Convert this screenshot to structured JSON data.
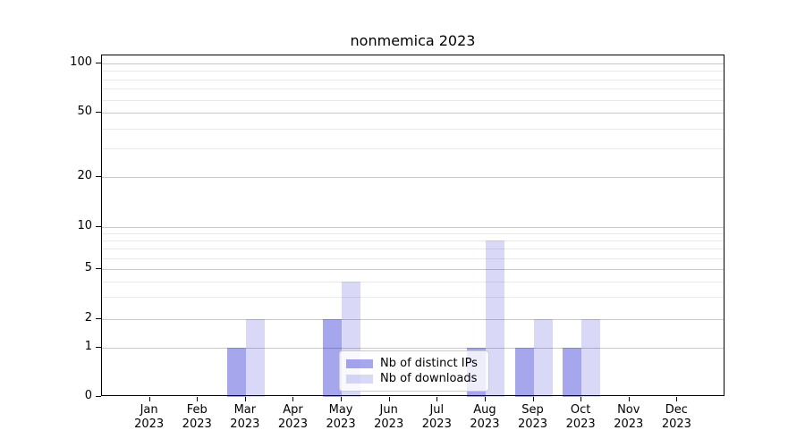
{
  "title": "nonmemica 2023",
  "chart_data": {
    "type": "bar",
    "title": "nonmemica 2023",
    "categories": [
      "Jan",
      "Feb",
      "Mar",
      "Apr",
      "May",
      "Jun",
      "Jul",
      "Aug",
      "Sep",
      "Oct",
      "Nov",
      "Dec"
    ],
    "x_year": "2023",
    "series": [
      {
        "name": "Nb of distinct IPs",
        "color": "rgba(0,0,204,0.35)",
        "values": [
          0,
          0,
          1,
          0,
          2,
          0,
          0,
          1,
          1,
          1,
          0,
          0
        ]
      },
      {
        "name": "Nb of downloads",
        "color": "rgba(0,0,204,0.15)",
        "values": [
          0,
          0,
          2,
          0,
          4,
          0,
          0,
          8,
          2,
          2,
          0,
          0
        ]
      }
    ],
    "xlabel": "",
    "ylabel": "",
    "yscale": "symlog",
    "yticks": [
      0,
      1,
      2,
      5,
      10,
      20,
      50,
      100
    ],
    "yticks_minor": [
      3,
      4,
      6,
      7,
      8,
      9,
      30,
      40,
      60,
      70,
      80,
      90
    ],
    "ylim": [
      0,
      112
    ],
    "grid": true,
    "legend_position": "lower center"
  },
  "colors": {
    "grid_major": "#c9c9c9",
    "grid_minor": "#e9e9e9",
    "spine": "#000000",
    "background": "#ffffff",
    "legend_border": "#cccccc"
  }
}
